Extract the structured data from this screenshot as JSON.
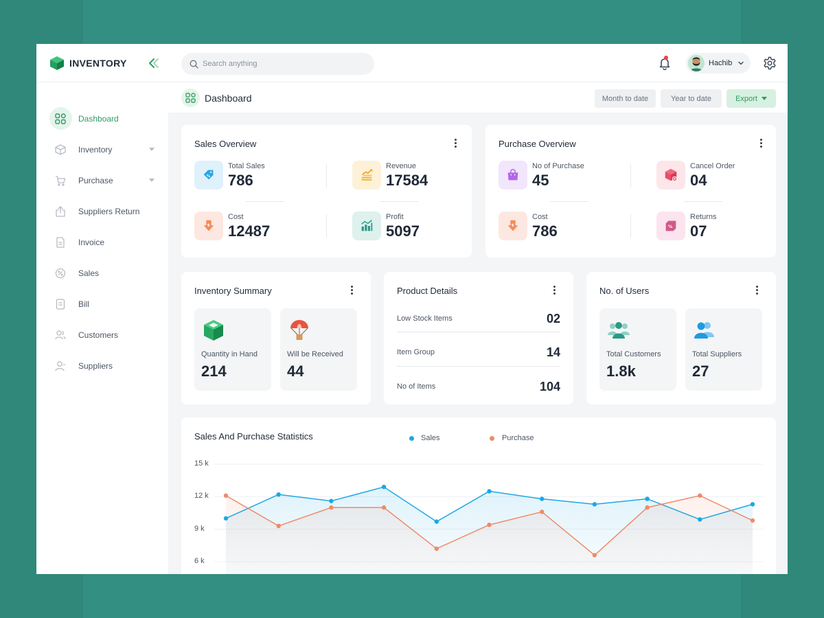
{
  "brand": {
    "name": "INVENTORY"
  },
  "sidebar": {
    "items": [
      {
        "label": "Dashboard",
        "icon": "grid-icon",
        "active": true
      },
      {
        "label": "Inventory",
        "icon": "box-icon",
        "has_caret": true
      },
      {
        "label": "Purchase",
        "icon": "cart-icon",
        "has_caret": true
      },
      {
        "label": "Suppliers Return",
        "icon": "upload-icon"
      },
      {
        "label": "Invoice",
        "icon": "invoice-icon"
      },
      {
        "label": "Sales",
        "icon": "percent-icon"
      },
      {
        "label": "Bill",
        "icon": "bill-icon"
      },
      {
        "label": "Customers",
        "icon": "users-icon"
      },
      {
        "label": "Suppliers",
        "icon": "supplier-icon"
      }
    ]
  },
  "topbar": {
    "search_placeholder": "Search anything",
    "user_name": "Hachib"
  },
  "page": {
    "title": "Dashboard",
    "month_to_date": "Month to date",
    "year_to_date": "Year to date",
    "export": "Export"
  },
  "sales_overview": {
    "title": "Sales Overview",
    "stats": [
      {
        "label": "Total Sales",
        "value": "786",
        "color": "#dff1fb"
      },
      {
        "label": "Revenue",
        "value": "17584",
        "color": "#fdf1d8"
      },
      {
        "label": "Cost",
        "value": "12487",
        "color": "#fde8e1"
      },
      {
        "label": "Profit",
        "value": "5097",
        "color": "#def1ed"
      }
    ]
  },
  "purchase_overview": {
    "title": "Purchase Overview",
    "stats": [
      {
        "label": "No of Purchase",
        "value": "45",
        "color": "#f1e6fb"
      },
      {
        "label": "Cancel Order",
        "value": "04",
        "color": "#fde6ea"
      },
      {
        "label": "Cost",
        "value": "786",
        "color": "#fde8e1"
      },
      {
        "label": "Returns",
        "value": "07",
        "color": "#fbe4ee"
      }
    ]
  },
  "inventory_summary": {
    "title": "Inventory Summary",
    "tiles": [
      {
        "label": "Quantity in Hand",
        "value": "214"
      },
      {
        "label": "Will be Received",
        "value": "44"
      }
    ]
  },
  "product_details": {
    "title": "Product Details",
    "rows": [
      {
        "label": "Low Stock Items",
        "value": "02"
      },
      {
        "label": "Item Group",
        "value": "14"
      },
      {
        "label": "No of Items",
        "value": "104"
      }
    ]
  },
  "users": {
    "title": "No. of Users",
    "tiles": [
      {
        "label": "Total Customers",
        "value": "1.8k"
      },
      {
        "label": "Total Suppliers",
        "value": "27"
      }
    ]
  },
  "chart_data": {
    "type": "area",
    "title": "Sales And Purchase Statistics",
    "legend_position": "top-center",
    "y_ticks": [
      "15 k",
      "12 k",
      "9 k",
      "6 k"
    ],
    "ylim": [
      6000,
      15000
    ],
    "series": [
      {
        "name": "Sales",
        "color": "#1ea7e4",
        "values": [
          10000,
          12200,
          11600,
          12900,
          9700,
          12500,
          11800,
          11300,
          11800,
          9900,
          11300
        ]
      },
      {
        "name": "Purchase",
        "color": "#ef8a6a",
        "values": [
          12100,
          9300,
          11000,
          11000,
          7200,
          9400,
          10600,
          6600,
          11000,
          12100,
          9800
        ]
      }
    ]
  },
  "colors": {
    "accent": "#2e9b63",
    "background": "#338f82"
  }
}
